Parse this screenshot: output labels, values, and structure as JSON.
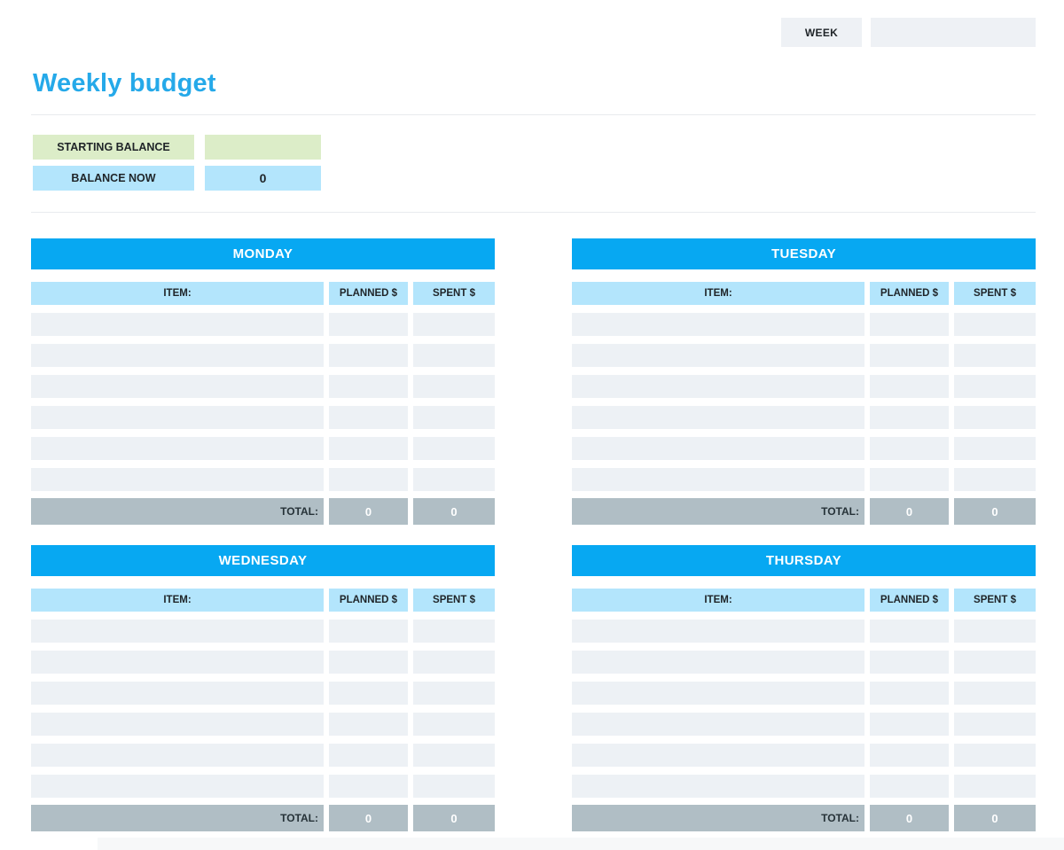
{
  "colors": {
    "accent": "#07a8f2",
    "title_blue": "#25a9e9",
    "light_blue": "#b3e5fc",
    "green": "#dcedc8",
    "row_gray": "#edf1f5",
    "total_gray": "#b0bec5",
    "box_gray": "#eef1f5"
  },
  "header": {
    "week_label": "WEEK",
    "week_value": ""
  },
  "title": "Weekly budget",
  "balance": {
    "starting_label": "STARTING BALANCE",
    "starting_value": "",
    "now_label": "BALANCE NOW",
    "now_value": "0"
  },
  "columns": {
    "item": "ITEM:",
    "planned": "PLANNED $",
    "spent": "SPENT $"
  },
  "total_label": "TOTAL:",
  "empty_rows": 6,
  "days": [
    {
      "name": "MONDAY",
      "total_planned": "0",
      "total_spent": "0"
    },
    {
      "name": "TUESDAY",
      "total_planned": "0",
      "total_spent": "0"
    },
    {
      "name": "WEDNESDAY",
      "total_planned": "0",
      "total_spent": "0"
    },
    {
      "name": "THURSDAY",
      "total_planned": "0",
      "total_spent": "0"
    }
  ]
}
